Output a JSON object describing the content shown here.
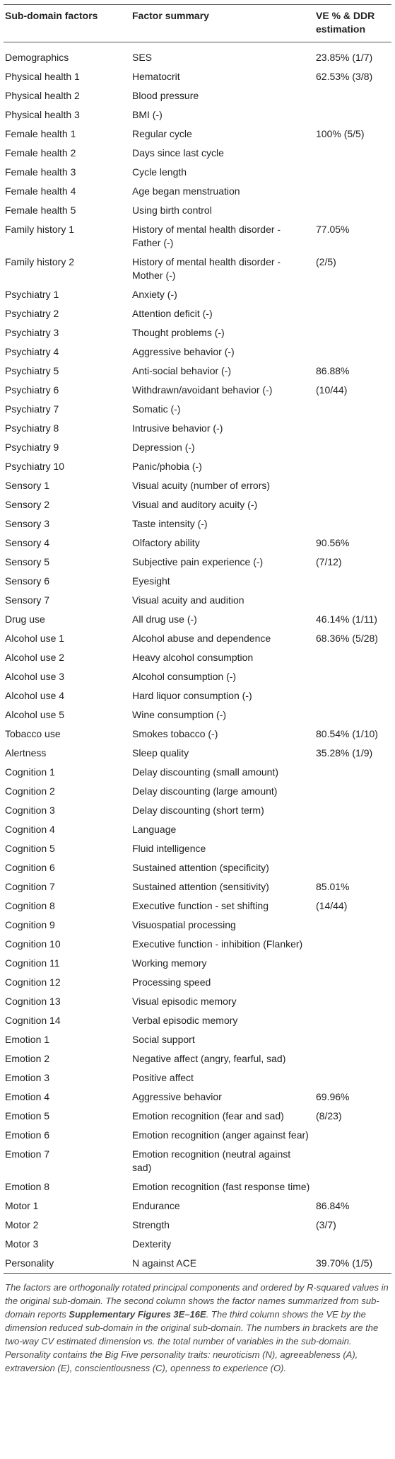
{
  "table": {
    "header": [
      "Sub-domain factors",
      "Factor summary",
      "VE % & DDR estimation"
    ],
    "rows": [
      [
        "Demographics",
        "SES",
        "23.85% (1/7)"
      ],
      [
        "Physical health 1",
        "Hematocrit",
        "62.53% (3/8)"
      ],
      [
        "Physical health 2",
        "Blood pressure"
      ],
      [
        "Physical health 3",
        "BMI (-)"
      ],
      [
        "Female health 1",
        "Regular cycle",
        "100% (5/5)"
      ],
      [
        "Female health 2",
        "Days since last cycle"
      ],
      [
        "Female health 3",
        "Cycle length"
      ],
      [
        "Female health 4",
        "Age began menstruation"
      ],
      [
        "Female health 5",
        "Using birth control"
      ],
      [
        "Family history 1",
        "History of mental health disorder - Father (-)",
        "77.05%"
      ],
      [
        "Family history 2",
        "History of mental health disorder - Mother (-)",
        "(2/5)"
      ],
      [
        "Psychiatry 1",
        "Anxiety (-)"
      ],
      [
        "Psychiatry 2",
        "Attention deficit (-)"
      ],
      [
        "Psychiatry 3",
        "Thought problems (-)"
      ],
      [
        "Psychiatry 4",
        "Aggressive behavior (-)"
      ],
      [
        "Psychiatry 5",
        "Anti-social behavior (-)",
        "86.88%"
      ],
      [
        "Psychiatry 6",
        "Withdrawn/avoidant behavior (-)",
        "(10/44)"
      ],
      [
        "Psychiatry 7",
        "Somatic (-)"
      ],
      [
        "Psychiatry 8",
        "Intrusive behavior (-)"
      ],
      [
        "Psychiatry 9",
        "Depression (-)"
      ],
      [
        "Psychiatry 10",
        "Panic/phobia (-)"
      ],
      [
        "Sensory 1",
        "Visual acuity (number of errors)"
      ],
      [
        "Sensory 2",
        "Visual and auditory acuity (-)"
      ],
      [
        "Sensory 3",
        "Taste intensity (-)"
      ],
      [
        "Sensory 4",
        "Olfactory ability",
        "90.56%"
      ],
      [
        "Sensory 5",
        "Subjective pain experience (-)",
        "(7/12)"
      ],
      [
        "Sensory 6",
        "Eyesight"
      ],
      [
        "Sensory 7",
        "Visual acuity and audition"
      ],
      [
        "Drug use",
        "All drug use (-)",
        "46.14% (1/11)"
      ],
      [
        "Alcohol use 1",
        "Alcohol abuse and dependence",
        "68.36% (5/28)"
      ],
      [
        "Alcohol use 2",
        "Heavy alcohol consumption"
      ],
      [
        "Alcohol use 3",
        "Alcohol consumption (-)"
      ],
      [
        "Alcohol use 4",
        "Hard liquor consumption (-)"
      ],
      [
        "Alcohol use 5",
        "Wine consumption (-)"
      ],
      [
        "Tobacco use",
        "Smokes tobacco (-)",
        "80.54% (1/10)"
      ],
      [
        "Alertness",
        "Sleep quality",
        "35.28% (1/9)"
      ],
      [
        "Cognition 1",
        "Delay discounting (small amount)"
      ],
      [
        "Cognition 2",
        "Delay discounting (large amount)"
      ],
      [
        "Cognition 3",
        "Delay discounting (short term)"
      ],
      [
        "Cognition 4",
        "Language"
      ],
      [
        "Cognition 5",
        "Fluid intelligence"
      ],
      [
        "Cognition 6",
        "Sustained attention (specificity)"
      ],
      [
        "Cognition 7",
        "Sustained attention (sensitivity)",
        "85.01%"
      ],
      [
        "Cognition 8",
        "Executive function - set shifting",
        "(14/44)"
      ],
      [
        "Cognition 9",
        "Visuospatial processing"
      ],
      [
        "Cognition 10",
        "Executive function - inhibition (Flanker)"
      ],
      [
        "Cognition 11",
        "Working memory"
      ],
      [
        "Cognition 12",
        "Processing speed"
      ],
      [
        "Cognition 13",
        "Visual episodic memory"
      ],
      [
        "Cognition 14",
        "Verbal episodic memory"
      ],
      [
        "Emotion 1",
        "Social support"
      ],
      [
        "Emotion 2",
        "Negative affect (angry, fearful, sad)"
      ],
      [
        "Emotion 3",
        "Positive affect"
      ],
      [
        "Emotion 4",
        "Aggressive behavior",
        "69.96%"
      ],
      [
        "Emotion 5",
        "Emotion recognition (fear and sad)",
        "(8/23)"
      ],
      [
        "Emotion 6",
        "Emotion recognition (anger against fear)"
      ],
      [
        "Emotion 7",
        "Emotion recognition (neutral against sad)"
      ],
      [
        "Emotion 8",
        "Emotion recognition (fast response time)"
      ],
      [
        "Motor 1",
        "Endurance",
        "86.84%"
      ],
      [
        "Motor 2",
        "Strength",
        "(3/7)"
      ],
      [
        "Motor 3",
        "Dexterity"
      ],
      [
        "Personality",
        "N against ACE",
        "39.70% (1/5)"
      ]
    ]
  },
  "footnote": {
    "before": "The factors are orthogonally rotated principal components and ordered by R-squared values in the original sub-domain. The second column shows the factor names summarized from sub-domain reports ",
    "bold": "Supplementary Figures 3E–16E",
    "after": ". The third column shows the VE by the dimension reduced sub-domain in the original sub-domain. The numbers in brackets are the two-way CV estimated dimension vs. the total number of variables in the sub-domain. Personality contains the Big Five personality traits: neuroticism (N), agreeableness (A), extraversion (E), conscientiousness (C), openness to experience (O)."
  }
}
